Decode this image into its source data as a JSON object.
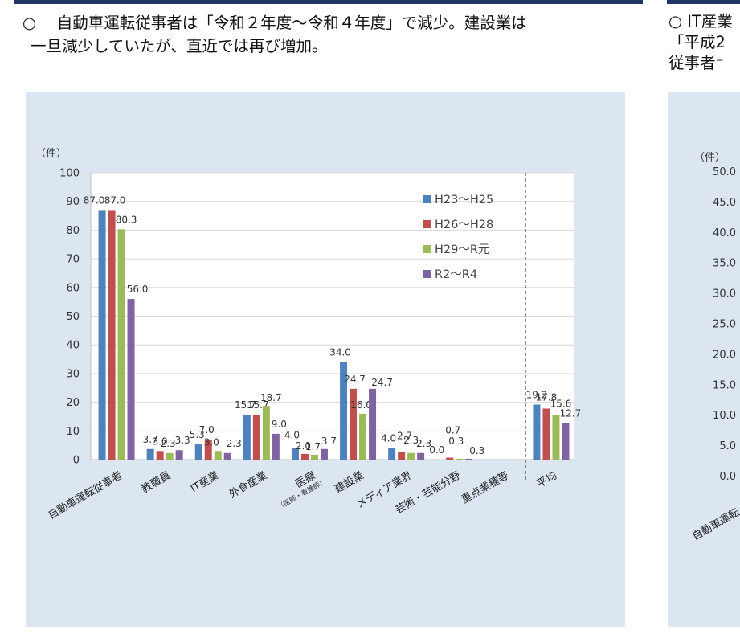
{
  "heading": {
    "bullet": "○",
    "line1": "自動車運転従事者は「令和２年度～令和４年度」で減少。建設業は",
    "line2": "一旦減少していたが、直近では再び増加。"
  },
  "heading_right": {
    "line1": "○ IT産業",
    "line2": "「平成2",
    "line3": "従事者⁻"
  },
  "chart_data": [
    {
      "type": "bar",
      "ylabel": "（件）",
      "ylim": [
        0,
        100
      ],
      "yticks": [
        0,
        10,
        20,
        30,
        40,
        50,
        60,
        70,
        80,
        90,
        100
      ],
      "grid": true,
      "legend_position": "top-right",
      "categories": [
        "自動車運転従事者",
        "教職員",
        "IT産業",
        "外食産業",
        "医療",
        "建設業",
        "メディア業界",
        "芸術・芸能分野",
        "重点業種等",
        "平均"
      ],
      "category_sublabels": {
        "医療": "（医師・看護師）"
      },
      "series": [
        {
          "name": "H23～H25",
          "color": "#4f81bd",
          "values": [
            87.0,
            3.7,
            5.3,
            15.7,
            4.0,
            34.0,
            4.0,
            0.0,
            null,
            19.2
          ]
        },
        {
          "name": "H26～H28",
          "color": "#c0504d",
          "values": [
            87.0,
            3.0,
            7.0,
            15.7,
            2.0,
            24.7,
            2.7,
            0.7,
            null,
            17.8
          ]
        },
        {
          "name": "H29～R元",
          "color": "#9bbb59",
          "values": [
            80.3,
            2.3,
            3.0,
            18.7,
            1.7,
            16.0,
            2.3,
            0.3,
            null,
            15.6
          ]
        },
        {
          "name": "R2～R4",
          "color": "#8064a2",
          "values": [
            56.0,
            3.3,
            2.3,
            9.0,
            3.7,
            24.7,
            2.3,
            0.3,
            null,
            12.7
          ]
        }
      ],
      "data_labels": [
        [
          "87.0",
          "3.7",
          "5.3",
          "15.7",
          "4.0",
          "34.0",
          "4.0",
          "0.0",
          "",
          "19.2"
        ],
        [
          "87.0",
          "3.0",
          "7.0",
          "15.7",
          "2.0",
          "24.7",
          "2.7",
          "0.7",
          "",
          "17.8"
        ],
        [
          "80.3",
          "2.3",
          "3.0",
          "18.7",
          "1.7",
          "16.0",
          "2.3",
          "0.3",
          "",
          "15.6"
        ],
        [
          "56.0",
          "3.3",
          "2.3",
          "9.0",
          "3.7",
          "24.7",
          "2.3",
          "0.3",
          "",
          "12.7"
        ]
      ]
    },
    {
      "type": "bar",
      "ylabel": "（件）",
      "yticks_labels": [
        "50.0",
        "45.0",
        "40.0",
        "35.0",
        "30.0",
        "25.0",
        "20.0",
        "15.0",
        "10.0",
        "5.0",
        "0.0"
      ],
      "ylim": [
        0,
        50
      ],
      "partial": true,
      "first_category": "自動車運転"
    }
  ]
}
